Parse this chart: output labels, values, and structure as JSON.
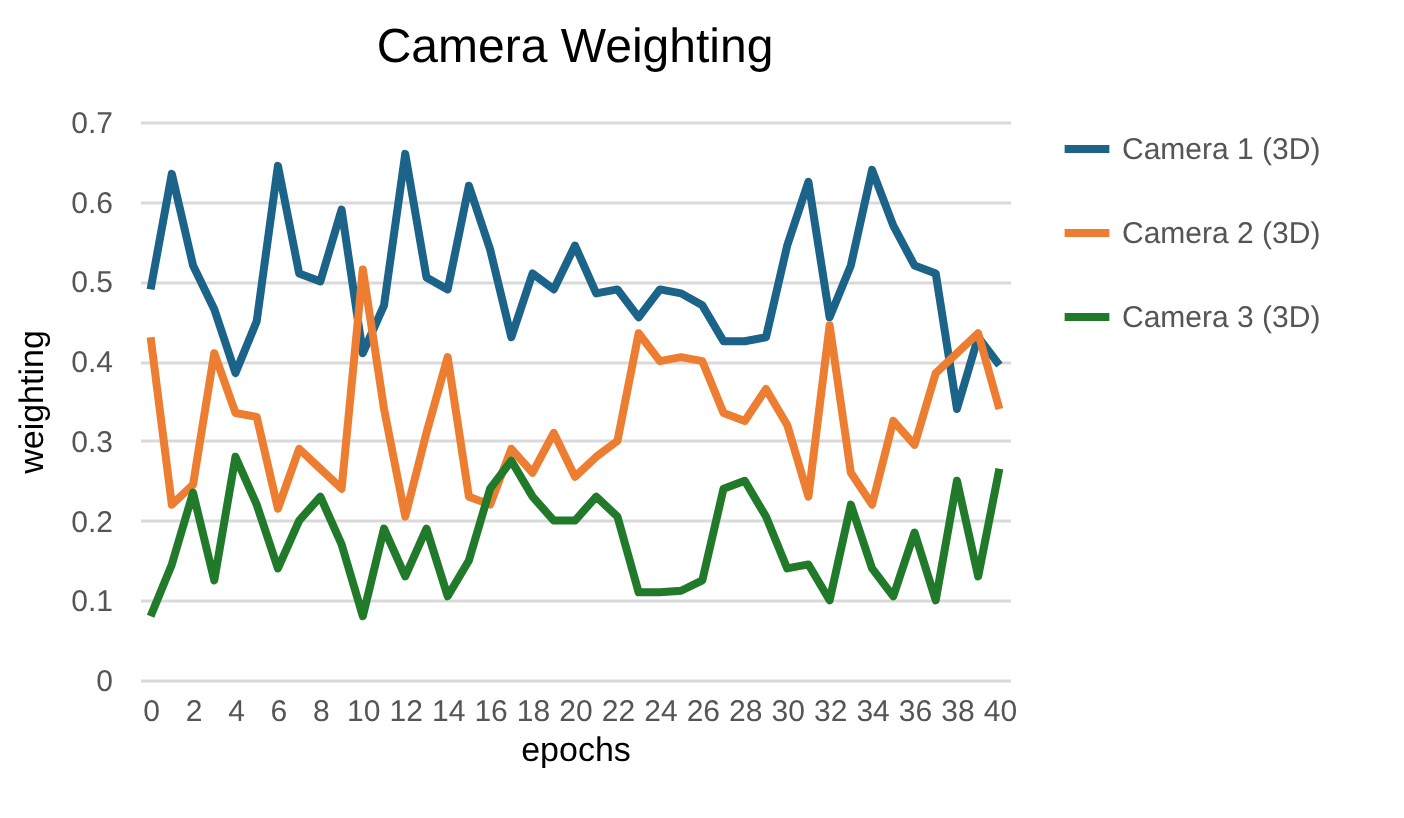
{
  "chart_data": {
    "type": "line",
    "title": "Camera Weighting",
    "xlabel": "epochs",
    "ylabel": "weighting",
    "x": [
      0,
      1,
      2,
      3,
      4,
      5,
      6,
      7,
      8,
      9,
      10,
      11,
      12,
      13,
      14,
      15,
      16,
      17,
      18,
      19,
      20,
      21,
      22,
      23,
      24,
      25,
      26,
      27,
      28,
      29,
      30,
      31,
      32,
      33,
      34,
      35,
      36,
      37,
      38,
      39,
      40
    ],
    "series": [
      {
        "name": "Camera 1 (3D)",
        "color": "#1b6388",
        "values": [
          0.49,
          0.635,
          0.52,
          0.465,
          0.385,
          0.45,
          0.645,
          0.51,
          0.5,
          0.59,
          0.41,
          0.47,
          0.66,
          0.505,
          0.49,
          0.62,
          0.54,
          0.43,
          0.51,
          0.49,
          0.545,
          0.485,
          0.49,
          0.455,
          0.49,
          0.485,
          0.47,
          0.425,
          0.425,
          0.43,
          0.545,
          0.625,
          0.455,
          0.52,
          0.64,
          0.57,
          0.52,
          0.51,
          0.34,
          0.43,
          0.395
        ]
      },
      {
        "name": "Camera 2 (3D)",
        "color": "#ed7d31",
        "values": [
          0.43,
          0.22,
          0.245,
          0.41,
          0.335,
          0.33,
          0.215,
          0.29,
          0.265,
          0.24,
          0.515,
          0.34,
          0.205,
          0.31,
          0.405,
          0.23,
          0.22,
          0.29,
          0.26,
          0.31,
          0.255,
          0.28,
          0.3,
          0.435,
          0.4,
          0.405,
          0.4,
          0.335,
          0.325,
          0.365,
          0.32,
          0.23,
          0.445,
          0.26,
          0.22,
          0.325,
          0.295,
          0.385,
          0.41,
          0.435,
          0.34
        ]
      },
      {
        "name": "Camera 3 (3D)",
        "color": "#217a2a",
        "values": [
          0.08,
          0.145,
          0.235,
          0.125,
          0.28,
          0.22,
          0.14,
          0.2,
          0.23,
          0.17,
          0.08,
          0.19,
          0.13,
          0.19,
          0.105,
          0.15,
          0.24,
          0.275,
          0.23,
          0.2,
          0.2,
          0.23,
          0.205,
          0.11,
          0.11,
          0.112,
          0.125,
          0.24,
          0.25,
          0.205,
          0.14,
          0.145,
          0.1,
          0.22,
          0.14,
          0.105,
          0.185,
          0.1,
          0.25,
          0.13,
          0.265
        ]
      }
    ],
    "xlim": [
      -0.5,
      40.5
    ],
    "xticks": [
      0,
      2,
      4,
      6,
      8,
      10,
      12,
      14,
      16,
      18,
      20,
      22,
      24,
      26,
      28,
      30,
      32,
      34,
      36,
      38,
      40
    ],
    "ylim": [
      0,
      0.7
    ],
    "yticks": [
      0,
      0.1,
      0.2,
      0.3,
      0.4,
      0.5,
      0.6,
      0.7
    ],
    "grid": "y",
    "legend": "right",
    "marker": "none",
    "line_style": "solid"
  }
}
